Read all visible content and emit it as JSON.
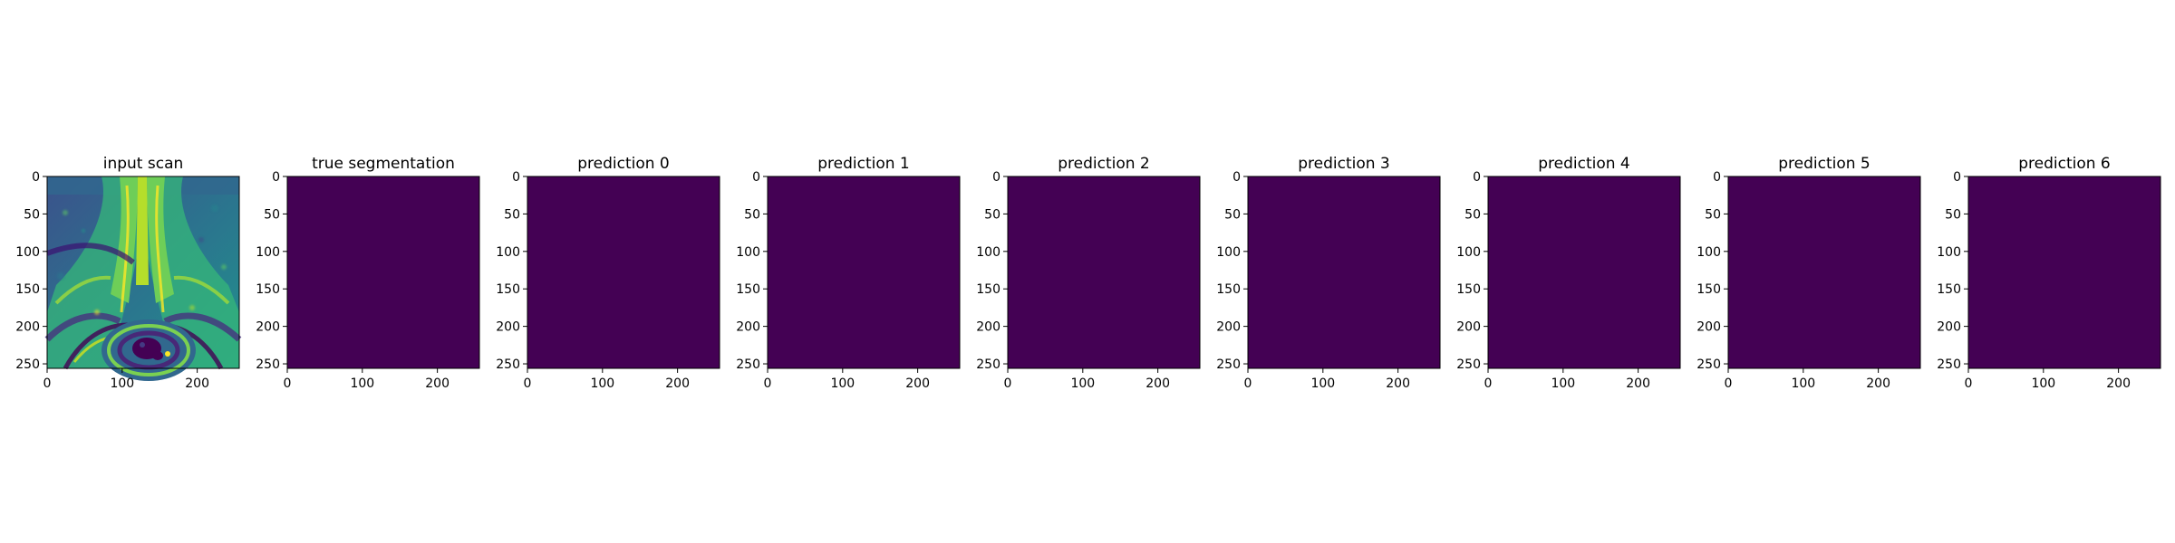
{
  "chart_data": [
    {
      "type": "heatmap",
      "title": "input scan",
      "colormap": "viridis",
      "content": "grayscale MRI-like pelvic scan rendered in viridis",
      "xticks": [
        "0",
        "100",
        "200"
      ],
      "yticks": [
        "0",
        "50",
        "100",
        "150",
        "200",
        "250"
      ],
      "xlim": [
        0,
        256
      ],
      "ylim": [
        256,
        0
      ]
    },
    {
      "type": "heatmap",
      "title": "true segmentation",
      "colormap": "viridis",
      "fill_color": "#440154",
      "value": 0,
      "xticks": [
        "0",
        "100",
        "200"
      ],
      "yticks": [
        "0",
        "50",
        "100",
        "150",
        "200",
        "250"
      ],
      "xlim": [
        0,
        256
      ],
      "ylim": [
        256,
        0
      ]
    },
    {
      "type": "heatmap",
      "title": "prediction 0",
      "colormap": "viridis",
      "fill_color": "#440154",
      "value": 0,
      "xticks": [
        "0",
        "100",
        "200"
      ],
      "yticks": [
        "0",
        "50",
        "100",
        "150",
        "200",
        "250"
      ],
      "xlim": [
        0,
        256
      ],
      "ylim": [
        256,
        0
      ]
    },
    {
      "type": "heatmap",
      "title": "prediction 1",
      "colormap": "viridis",
      "fill_color": "#440154",
      "value": 0,
      "xticks": [
        "0",
        "100",
        "200"
      ],
      "yticks": [
        "0",
        "50",
        "100",
        "150",
        "200",
        "250"
      ],
      "xlim": [
        0,
        256
      ],
      "ylim": [
        256,
        0
      ]
    },
    {
      "type": "heatmap",
      "title": "prediction 2",
      "colormap": "viridis",
      "fill_color": "#440154",
      "value": 0,
      "xticks": [
        "0",
        "100",
        "200"
      ],
      "yticks": [
        "0",
        "50",
        "100",
        "150",
        "200",
        "250"
      ],
      "xlim": [
        0,
        256
      ],
      "ylim": [
        256,
        0
      ]
    },
    {
      "type": "heatmap",
      "title": "prediction 3",
      "colormap": "viridis",
      "fill_color": "#440154",
      "value": 0,
      "xticks": [
        "0",
        "100",
        "200"
      ],
      "yticks": [
        "0",
        "50",
        "100",
        "150",
        "200",
        "250"
      ],
      "xlim": [
        0,
        256
      ],
      "ylim": [
        256,
        0
      ]
    },
    {
      "type": "heatmap",
      "title": "prediction 4",
      "colormap": "viridis",
      "fill_color": "#440154",
      "value": 0,
      "xticks": [
        "0",
        "100",
        "200"
      ],
      "yticks": [
        "0",
        "50",
        "100",
        "150",
        "200",
        "250"
      ],
      "xlim": [
        0,
        256
      ],
      "ylim": [
        256,
        0
      ]
    },
    {
      "type": "heatmap",
      "title": "prediction 5",
      "colormap": "viridis",
      "fill_color": "#440154",
      "value": 0,
      "xticks": [
        "0",
        "100",
        "200"
      ],
      "yticks": [
        "0",
        "50",
        "100",
        "150",
        "200",
        "250"
      ],
      "xlim": [
        0,
        256
      ],
      "ylim": [
        256,
        0
      ]
    },
    {
      "type": "heatmap",
      "title": "prediction 6",
      "colormap": "viridis",
      "fill_color": "#440154",
      "value": 0,
      "xticks": [
        "0",
        "100",
        "200"
      ],
      "yticks": [
        "0",
        "50",
        "100",
        "150",
        "200",
        "250"
      ],
      "xlim": [
        0,
        256
      ],
      "ylim": [
        256,
        0
      ]
    }
  ]
}
